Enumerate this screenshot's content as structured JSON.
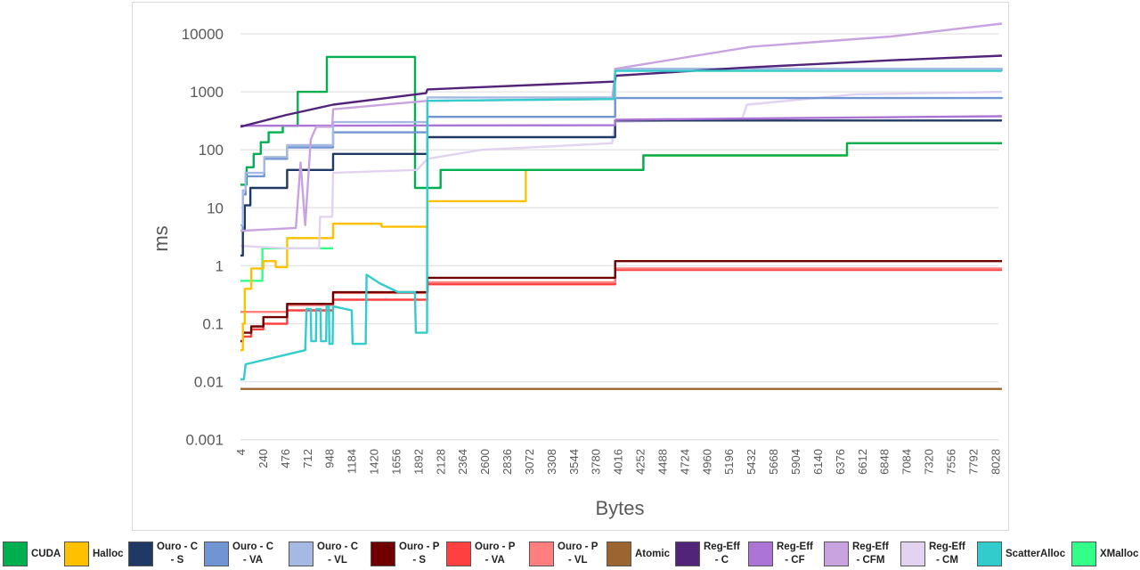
{
  "chart_data": {
    "type": "line",
    "title": "",
    "xlabel": "Bytes",
    "ylabel": "ms",
    "yscale": "log",
    "ylim": [
      0.001,
      10000
    ],
    "xlim": [
      4,
      8192
    ],
    "grid": "horizontal",
    "legend_position": "bottom",
    "y_ticks": [
      "10000",
      "1000",
      "100",
      "10",
      "1",
      "0.1",
      "0.01",
      "0.001"
    ],
    "x_ticks": [
      "4",
      "240",
      "476",
      "712",
      "948",
      "1184",
      "1420",
      "1656",
      "1892",
      "2128",
      "2364",
      "2600",
      "2836",
      "3072",
      "3308",
      "3544",
      "3780",
      "4016",
      "4252",
      "4488",
      "4724",
      "4960",
      "5196",
      "5432",
      "5668",
      "5904",
      "6140",
      "6376",
      "6612",
      "6848",
      "7084",
      "7320",
      "7556",
      "7792",
      "8028"
    ],
    "series": [
      {
        "name": "Atomic",
        "legend": "Atomic",
        "color": "#9c6430",
        "step": true,
        "points": [
          [
            4,
            0.0075
          ],
          [
            8192,
            0.0075
          ]
        ]
      },
      {
        "name": "XMalloc",
        "legend": "XMalloc",
        "color": "#33ff88",
        "step": true,
        "points": [
          [
            4,
            0.55
          ],
          [
            240,
            2.0
          ],
          [
            1000,
            2.0
          ]
        ]
      },
      {
        "name": "Ouro - P - VA",
        "legend": "Ouro - P\n- VA",
        "color": "#ff4040",
        "step": true,
        "points": [
          [
            4,
            0.05
          ],
          [
            30,
            0.06
          ],
          [
            120,
            0.08
          ],
          [
            250,
            0.1
          ],
          [
            506,
            0.17
          ],
          [
            1000,
            0.26
          ],
          [
            2014,
            0.48
          ],
          [
            4033,
            0.85
          ],
          [
            8192,
            0.85
          ]
        ]
      },
      {
        "name": "Ouro - P - VL",
        "legend": "Ouro - P\n- VL",
        "color": "#ff7f7f",
        "step": true,
        "points": [
          [
            4,
            0.16
          ],
          [
            506,
            0.21
          ],
          [
            1000,
            0.34
          ],
          [
            2014,
            0.52
          ],
          [
            4033,
            0.9
          ],
          [
            8192,
            0.9
          ]
        ]
      },
      {
        "name": "Ouro - P - S",
        "legend": "Ouro - P\n- S",
        "color": "#700000",
        "step": true,
        "points": [
          [
            4,
            0.05
          ],
          [
            30,
            0.07
          ],
          [
            120,
            0.09
          ],
          [
            250,
            0.13
          ],
          [
            506,
            0.22
          ],
          [
            1000,
            0.35
          ],
          [
            2014,
            0.62
          ],
          [
            4033,
            1.2
          ],
          [
            8192,
            1.2
          ]
        ]
      },
      {
        "name": "Halloc",
        "legend": "Halloc",
        "color": "#ffc000",
        "step": true,
        "points": [
          [
            4,
            0.035
          ],
          [
            30,
            0.1
          ],
          [
            50,
            0.4
          ],
          [
            120,
            0.9
          ],
          [
            250,
            1.2
          ],
          [
            383,
            0.95
          ],
          [
            506,
            3
          ],
          [
            1000,
            5.3
          ],
          [
            1521,
            4.7
          ],
          [
            2014,
            13
          ],
          [
            3072,
            45
          ],
          [
            4336,
            80
          ],
          [
            6526,
            130
          ],
          [
            8192,
            130
          ]
        ]
      },
      {
        "name": "CUDA",
        "legend": "CUDA",
        "color": "#00b050",
        "step": true,
        "points": [
          [
            4,
            25
          ],
          [
            70,
            50
          ],
          [
            146,
            85
          ],
          [
            222,
            135
          ],
          [
            307,
            200
          ],
          [
            459,
            260
          ],
          [
            620,
            1000
          ],
          [
            933,
            4000
          ],
          [
            1881,
            22
          ],
          [
            2156,
            45
          ],
          [
            4336,
            80
          ],
          [
            6526,
            130
          ],
          [
            8192,
            130
          ]
        ]
      },
      {
        "name": "Reg-Eff - CM",
        "legend": "Reg-Eff\n- CM",
        "color": "#e2d3f0",
        "step": false,
        "points": [
          [
            4,
            2.2
          ],
          [
            500,
            2.0
          ],
          [
            850,
            2.0
          ],
          [
            860,
            7
          ],
          [
            990,
            7
          ],
          [
            1000,
            40
          ],
          [
            1900,
            45
          ],
          [
            2014,
            70
          ],
          [
            2600,
            100
          ],
          [
            4000,
            130
          ],
          [
            4033,
            300
          ],
          [
            5400,
            350
          ],
          [
            5450,
            600
          ],
          [
            6600,
            900
          ],
          [
            8192,
            1000
          ]
        ]
      },
      {
        "name": "Ouro - C - S",
        "legend": "Ouro - C\n- S",
        "color": "#203864",
        "step": true,
        "points": [
          [
            4,
            1.5
          ],
          [
            30,
            4
          ],
          [
            50,
            11
          ],
          [
            110,
            22
          ],
          [
            506,
            45
          ],
          [
            1000,
            85
          ],
          [
            2014,
            165
          ],
          [
            4033,
            320
          ],
          [
            8192,
            320
          ]
        ]
      },
      {
        "name": "Reg-Eff - CF",
        "legend": "Reg-Eff\n- CF",
        "color": "#ab74d6",
        "step": false,
        "points": [
          [
            4,
            260
          ],
          [
            4030,
            265
          ],
          [
            4040,
            330
          ],
          [
            8192,
            380
          ]
        ]
      },
      {
        "name": "Ouro - C - VA",
        "legend": "Ouro - C\n- VA",
        "color": "#7194d3",
        "step": true,
        "points": [
          [
            4,
            4
          ],
          [
            30,
            17
          ],
          [
            60,
            35
          ],
          [
            260,
            70
          ],
          [
            506,
            110
          ],
          [
            1000,
            200
          ],
          [
            2014,
            370
          ],
          [
            4033,
            780
          ],
          [
            8192,
            760
          ]
        ]
      },
      {
        "name": "Ouro - C - VL",
        "legend": "Ouro - C\n- VL",
        "color": "#a5b9e2",
        "step": true,
        "points": [
          [
            4,
            5
          ],
          [
            30,
            20
          ],
          [
            60,
            40
          ],
          [
            260,
            75
          ],
          [
            506,
            120
          ],
          [
            1000,
            300
          ],
          [
            2014,
            800
          ],
          [
            4033,
            2500
          ],
          [
            8192,
            2300
          ]
        ]
      },
      {
        "name": "Reg-Eff - CFM",
        "legend": "Reg-Eff\n- CFM",
        "color": "#c9a3e0",
        "step": false,
        "points": [
          [
            4,
            4
          ],
          [
            600,
            4.5
          ],
          [
            650,
            60
          ],
          [
            700,
            5
          ],
          [
            760,
            150
          ],
          [
            820,
            250
          ],
          [
            990,
            250
          ],
          [
            1000,
            500
          ],
          [
            2014,
            700
          ],
          [
            4000,
            750
          ],
          [
            4040,
            2500
          ],
          [
            5500,
            6000
          ],
          [
            7000,
            9000
          ],
          [
            8192,
            15000
          ]
        ]
      },
      {
        "name": "Reg-Eff - C",
        "legend": "Reg-Eff\n- C",
        "color": "#522479",
        "step": false,
        "points": [
          [
            4,
            250
          ],
          [
            500,
            400
          ],
          [
            1000,
            600
          ],
          [
            2000,
            950
          ],
          [
            2014,
            1100
          ],
          [
            4030,
            1500
          ],
          [
            4040,
            1900
          ],
          [
            5400,
            2600
          ],
          [
            7000,
            3500
          ],
          [
            8192,
            4200
          ]
        ]
      },
      {
        "name": "ScatterAlloc",
        "legend": "ScatterAlloc",
        "color": "#33cccc",
        "step": false,
        "points": [
          [
            4,
            0.011
          ],
          [
            40,
            0.011
          ],
          [
            60,
            0.02
          ],
          [
            700,
            0.035
          ],
          [
            715,
            0.18
          ],
          [
            760,
            0.18
          ],
          [
            765,
            0.05
          ],
          [
            815,
            0.05
          ],
          [
            820,
            0.18
          ],
          [
            865,
            0.18
          ],
          [
            870,
            0.05
          ],
          [
            925,
            0.05
          ],
          [
            930,
            0.2
          ],
          [
            955,
            0.2
          ],
          [
            960,
            0.045
          ],
          [
            995,
            0.045
          ],
          [
            1000,
            0.2
          ],
          [
            1200,
            0.17
          ],
          [
            1210,
            0.045
          ],
          [
            1350,
            0.045
          ],
          [
            1360,
            0.7
          ],
          [
            1500,
            0.5
          ],
          [
            1700,
            0.35
          ],
          [
            1880,
            0.35
          ],
          [
            1890,
            0.07
          ],
          [
            2010,
            0.07
          ],
          [
            2014,
            700
          ],
          [
            4020,
            750
          ],
          [
            4033,
            2300
          ],
          [
            8192,
            2300
          ]
        ]
      }
    ],
    "legend_order": [
      "CUDA",
      "Halloc",
      "Ouro - C - S",
      "Ouro - C - VA",
      "Ouro - C - VL",
      "Ouro - P - S",
      "Ouro - P - VA",
      "Ouro - P - VL",
      "Atomic",
      "Reg-Eff - C",
      "Reg-Eff - CF",
      "Reg-Eff - CFM",
      "Reg-Eff - CM",
      "ScatterAlloc",
      "XMalloc"
    ]
  }
}
